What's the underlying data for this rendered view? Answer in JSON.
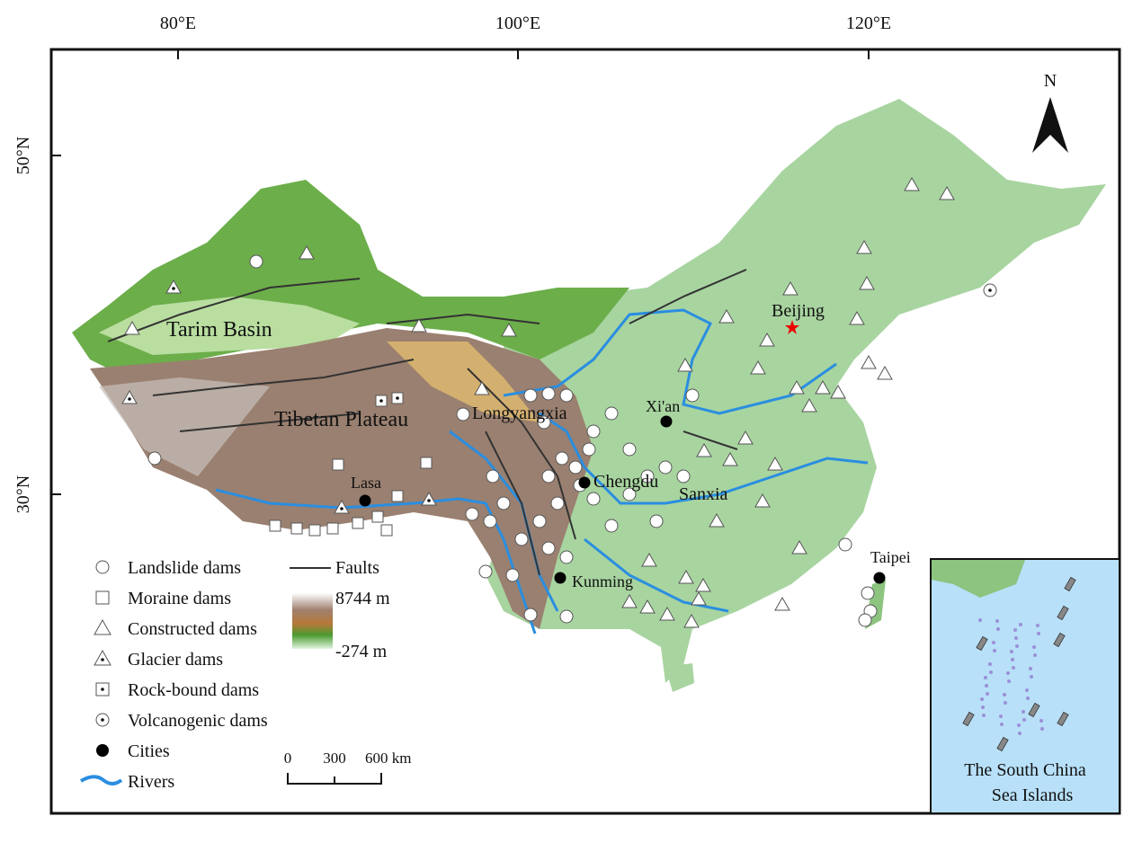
{
  "axes": {
    "top_ticks": [
      "80°E",
      "100°E",
      "120°E"
    ],
    "left_ticks": [
      "50°N",
      "30°N"
    ]
  },
  "north_arrow": "N",
  "places": [
    "Tarim Basin",
    "Tibetan Plateau",
    "Longyangxia",
    "Xi'an",
    "Chengdu",
    "Sanxia",
    "Lasa",
    "Kunming",
    "Beijing",
    "Taipei"
  ],
  "legend": {
    "items": [
      "Landslide dams",
      "Moraine dams",
      "Constructed dams",
      "Glacier dams",
      "Rock-bound dams",
      "Volcanogenic dams",
      "Cities",
      "Rivers"
    ],
    "faults": "Faults",
    "elevation_max": "8744 m",
    "elevation_min": "-274 m"
  },
  "scale_bar": [
    "0",
    "300",
    "600 km"
  ],
  "inset": {
    "title_lines": [
      "The South China",
      "Sea Islands"
    ]
  }
}
